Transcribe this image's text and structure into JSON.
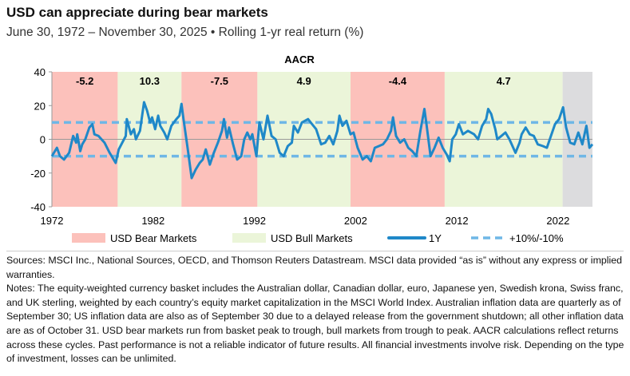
{
  "header": {
    "title": "USD can appreciate during bear markets",
    "subtitle": "June 30, 1972 – November 30, 2025 • Rolling 1-yr real return (%)"
  },
  "chart_data": {
    "type": "line",
    "title": "AACR",
    "xlabel": "",
    "ylabel": "",
    "xlim": [
      1972.5,
      2025.9
    ],
    "ylim": [
      -40,
      40
    ],
    "yticks": [
      40,
      20,
      0,
      -20,
      -40
    ],
    "xticks": [
      "1972",
      "1982",
      "1992",
      "2002",
      "2012",
      "2022"
    ],
    "grid": false,
    "legend_placement": "bottom",
    "colors": {
      "bear": "#fcc1bb",
      "bull": "#ebf5d9",
      "recent": "#dcdcde",
      "line": "#1f88c8",
      "band": "#6fb7e6",
      "zero": "#999999"
    },
    "regions": [
      {
        "type": "bear",
        "start": 1972.5,
        "end": 1979.0,
        "aacr": "-5.2"
      },
      {
        "type": "bull",
        "start": 1979.0,
        "end": 1985.3,
        "aacr": "10.3"
      },
      {
        "type": "bear",
        "start": 1985.3,
        "end": 1992.8,
        "aacr": "-7.5"
      },
      {
        "type": "bull",
        "start": 1992.8,
        "end": 2002.0,
        "aacr": "4.9"
      },
      {
        "type": "bear",
        "start": 2002.0,
        "end": 2011.3,
        "aacr": "-4.4"
      },
      {
        "type": "bull",
        "start": 2011.3,
        "end": 2022.95,
        "aacr": "4.7"
      },
      {
        "type": "recent",
        "start": 2022.95,
        "end": 2025.9,
        "aacr": ""
      }
    ],
    "bands": [
      10,
      -10
    ],
    "legend": [
      {
        "key": "bear",
        "label": "USD Bear Markets"
      },
      {
        "key": "bull",
        "label": "USD Bull Markets"
      },
      {
        "key": "line",
        "label": "1Y"
      },
      {
        "key": "band",
        "label": "+10%/-10%"
      }
    ],
    "series": [
      {
        "name": "1Y",
        "points": [
          [
            1972.5,
            -10
          ],
          [
            1973.0,
            -5
          ],
          [
            1973.3,
            -10
          ],
          [
            1973.7,
            -12
          ],
          [
            1974.2,
            -8
          ],
          [
            1974.6,
            2
          ],
          [
            1974.9,
            -2
          ],
          [
            1975.0,
            3
          ],
          [
            1975.3,
            -7
          ],
          [
            1975.5,
            -3
          ],
          [
            1975.8,
            0
          ],
          [
            1976.2,
            7
          ],
          [
            1976.5,
            9
          ],
          [
            1976.7,
            3
          ],
          [
            1977.1,
            2
          ],
          [
            1977.7,
            -2
          ],
          [
            1978.2,
            -8
          ],
          [
            1978.8,
            -14
          ],
          [
            1979.1,
            -6
          ],
          [
            1979.8,
            2
          ],
          [
            1979.9,
            12
          ],
          [
            1980.3,
            3
          ],
          [
            1980.6,
            6
          ],
          [
            1980.8,
            0
          ],
          [
            1981.2,
            5
          ],
          [
            1981.6,
            22
          ],
          [
            1981.9,
            17
          ],
          [
            1982.2,
            10
          ],
          [
            1982.4,
            13
          ],
          [
            1982.7,
            6
          ],
          [
            1983.0,
            14
          ],
          [
            1983.2,
            8
          ],
          [
            1983.6,
            4
          ],
          [
            1983.9,
            0
          ],
          [
            1984.3,
            8
          ],
          [
            1984.8,
            12
          ],
          [
            1985.1,
            14
          ],
          [
            1985.3,
            21
          ],
          [
            1985.5,
            12
          ],
          [
            1985.9,
            -5
          ],
          [
            1986.3,
            -23
          ],
          [
            1986.7,
            -18
          ],
          [
            1987.1,
            -14
          ],
          [
            1987.4,
            -12
          ],
          [
            1987.7,
            -6
          ],
          [
            1988.1,
            -15
          ],
          [
            1988.5,
            -8
          ],
          [
            1988.9,
            -2
          ],
          [
            1989.3,
            5
          ],
          [
            1989.5,
            12
          ],
          [
            1989.8,
            1
          ],
          [
            1990.0,
            7
          ],
          [
            1990.4,
            -3
          ],
          [
            1990.8,
            -12
          ],
          [
            1991.2,
            -10
          ],
          [
            1991.5,
            0
          ],
          [
            1991.8,
            4
          ],
          [
            1992.1,
            0
          ],
          [
            1992.3,
            3
          ],
          [
            1992.7,
            -10
          ],
          [
            1993.0,
            10
          ],
          [
            1993.4,
            0
          ],
          [
            1993.8,
            14
          ],
          [
            1994.2,
            2
          ],
          [
            1994.6,
            0
          ],
          [
            1995.0,
            -8
          ],
          [
            1995.4,
            -10
          ],
          [
            1995.8,
            -4
          ],
          [
            1996.2,
            -2
          ],
          [
            1996.4,
            8
          ],
          [
            1996.8,
            4
          ],
          [
            1997.2,
            10
          ],
          [
            1997.8,
            12
          ],
          [
            1998.2,
            9
          ],
          [
            1998.6,
            6
          ],
          [
            1999.1,
            -3
          ],
          [
            1999.5,
            -2
          ],
          [
            1999.9,
            2
          ],
          [
            2000.3,
            -3
          ],
          [
            2000.7,
            5
          ],
          [
            2000.9,
            14
          ],
          [
            2001.2,
            8
          ],
          [
            2001.6,
            11
          ],
          [
            2002.0,
            3
          ],
          [
            2002.3,
            4
          ],
          [
            2002.7,
            -5
          ],
          [
            2003.2,
            -12
          ],
          [
            2003.6,
            -10
          ],
          [
            2004.0,
            -13
          ],
          [
            2004.4,
            -5
          ],
          [
            2004.8,
            -4
          ],
          [
            2005.2,
            -3
          ],
          [
            2005.6,
            0
          ],
          [
            2006.0,
            5
          ],
          [
            2006.2,
            13
          ],
          [
            2006.5,
            2
          ],
          [
            2006.9,
            -2
          ],
          [
            2007.3,
            0
          ],
          [
            2007.7,
            -5
          ],
          [
            2008.1,
            -7
          ],
          [
            2008.5,
            -10
          ],
          [
            2008.9,
            5
          ],
          [
            2009.3,
            18
          ],
          [
            2009.5,
            9
          ],
          [
            2009.9,
            -10
          ],
          [
            2010.3,
            -5
          ],
          [
            2010.7,
            1
          ],
          [
            2011.1,
            -5
          ],
          [
            2011.5,
            -9
          ],
          [
            2011.8,
            -13
          ],
          [
            2012.05,
            0
          ],
          [
            2012.4,
            3
          ],
          [
            2012.7,
            9
          ],
          [
            2013.1,
            3
          ],
          [
            2013.6,
            5
          ],
          [
            2014.2,
            3
          ],
          [
            2014.6,
            0
          ],
          [
            2015.0,
            8
          ],
          [
            2015.4,
            12
          ],
          [
            2015.6,
            18
          ],
          [
            2015.9,
            15
          ],
          [
            2016.3,
            6
          ],
          [
            2016.5,
            0
          ],
          [
            2016.9,
            2
          ],
          [
            2017.3,
            4
          ],
          [
            2017.7,
            0
          ],
          [
            2018.3,
            -8
          ],
          [
            2018.7,
            -2
          ],
          [
            2018.9,
            3
          ],
          [
            2019.3,
            7
          ],
          [
            2019.7,
            3
          ],
          [
            2020.1,
            2
          ],
          [
            2020.5,
            -3
          ],
          [
            2021.0,
            -4
          ],
          [
            2021.4,
            -5
          ],
          [
            2021.8,
            2
          ],
          [
            2022.2,
            9
          ],
          [
            2022.6,
            12
          ],
          [
            2023.0,
            19
          ],
          [
            2023.3,
            7
          ],
          [
            2023.7,
            -2
          ],
          [
            2024.1,
            -3
          ],
          [
            2024.5,
            4
          ],
          [
            2024.9,
            -3
          ],
          [
            2025.3,
            8
          ],
          [
            2025.6,
            -5
          ],
          [
            2025.9,
            -3
          ]
        ]
      }
    ]
  },
  "notes": {
    "sources": "Sources: MSCI Inc., National Sources, OECD, and Thomson Reuters Datastream. MSCI data provided “as is” without any express or implied warranties.",
    "notes": "Notes: The equity-weighted currency basket includes the Australian dollar, Canadian dollar, euro, Japanese yen, Swedish krona, Swiss franc, and UK sterling, weighted by each country’s equity market capitalization in the MSCI World Index. Australian inflation data are quarterly as of September 30; US inflation data are also as of September 30 due to a delayed release from the government shutdown; all other inflation data are as of October 31. USD bear markets run from basket peak to trough, bull markets from trough to peak. AACR calculations reflect returns across these cycles. Past performance is not a reliable indicator of future results. All financial investments involve risk. Depending on the type of investment, losses can be unlimited."
  }
}
